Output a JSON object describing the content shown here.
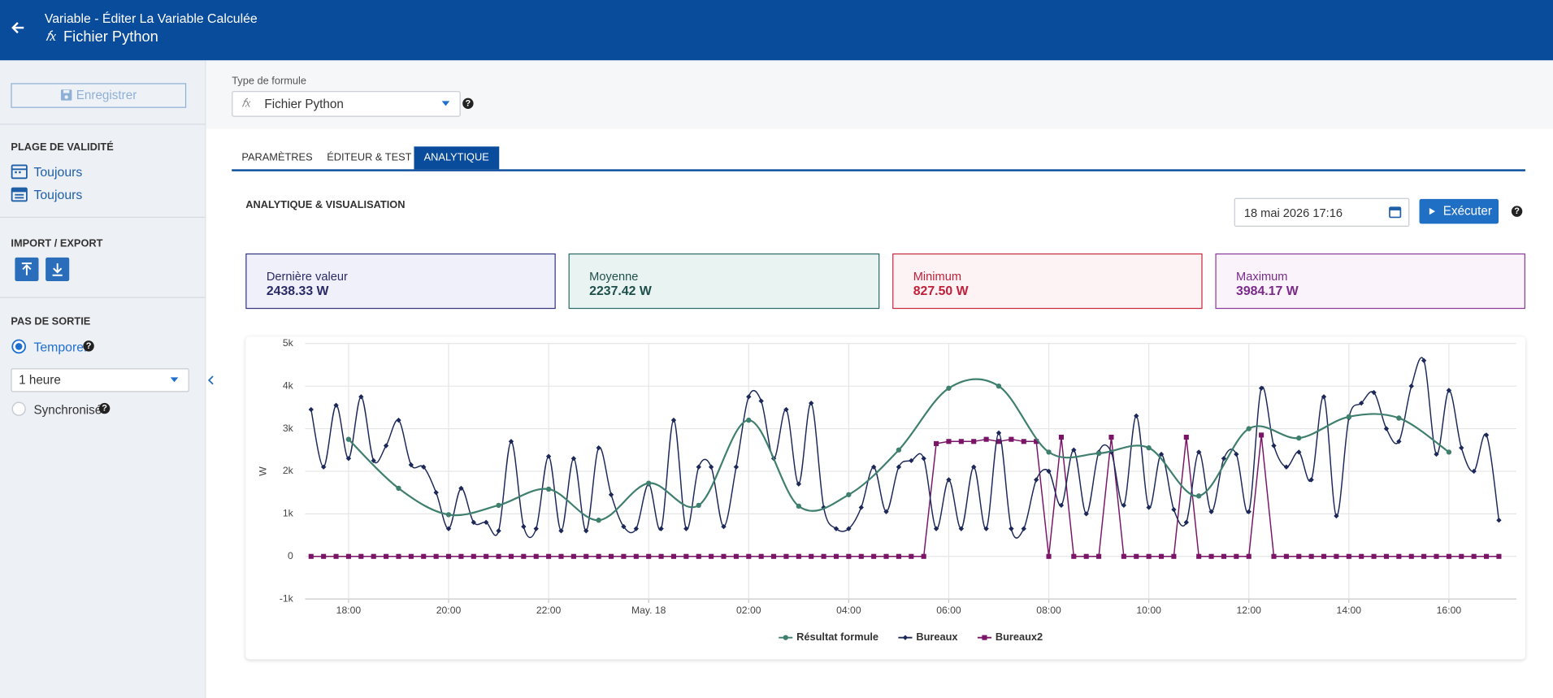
{
  "header": {
    "subtitle": "Variable - Éditer La Variable Calculée",
    "title": "Fichier Python"
  },
  "sidebar": {
    "save": "Enregistrer",
    "validity": {
      "heading": "PLAGE DE VALIDITÉ",
      "items": [
        "Toujours",
        "Toujours"
      ]
    },
    "import_export": {
      "heading": "IMPORT / EXPORT"
    },
    "output": {
      "heading": "PAS DE SORTIE",
      "temporal": "Temporel",
      "interval": "1 heure",
      "sync": "Synchronisé"
    }
  },
  "formula": {
    "label": "Type de formule",
    "value": "Fichier Python"
  },
  "tabs": [
    "PARAMÈTRES",
    "ÉDITEUR & TEST",
    "ANALYTIQUE"
  ],
  "analytics": {
    "heading": "ANALYTIQUE & VISUALISATION",
    "date": "18 mai 2026 17:16",
    "run": "Exécuter",
    "stats": [
      {
        "label": "Dernière valeur",
        "value": "2438.33 W"
      },
      {
        "label": "Moyenne",
        "value": "2237.42 W"
      },
      {
        "label": "Minimum",
        "value": "827.50 W"
      },
      {
        "label": "Maximum",
        "value": "3984.17 W"
      }
    ]
  },
  "chart_data": {
    "type": "line",
    "y_label": "W",
    "grid": true,
    "legend": "bottom",
    "xlim": [
      17.13,
      41.35
    ],
    "xticks": [
      {
        "value": 18,
        "label": "18:00"
      },
      {
        "value": 20,
        "label": "20:00"
      },
      {
        "value": 22,
        "label": "22:00"
      },
      {
        "value": 24,
        "label": "May. 18"
      },
      {
        "value": 26,
        "label": "02:00"
      },
      {
        "value": 28,
        "label": "04:00"
      },
      {
        "value": 30,
        "label": "06:00"
      },
      {
        "value": 32,
        "label": "08:00"
      },
      {
        "value": 34,
        "label": "10:00"
      },
      {
        "value": 36,
        "label": "12:00"
      },
      {
        "value": 38,
        "label": "14:00"
      },
      {
        "value": 40,
        "label": "16:00"
      }
    ],
    "ylim": [
      -1000,
      5000
    ],
    "yticks": [
      {
        "value": -1000,
        "label": "-1k"
      },
      0,
      {
        "value": 1000,
        "label": "1k"
      },
      {
        "value": 2000,
        "label": "2k"
      },
      {
        "value": 3000,
        "label": "3k"
      },
      {
        "value": 4000,
        "label": "4k"
      },
      {
        "value": 5000,
        "label": "5k"
      }
    ],
    "series": [
      {
        "name": "Résultat formule",
        "color": "#3f7f6e",
        "marker": "circle",
        "smooth": true,
        "x": [
          18,
          19,
          20,
          21,
          22,
          23,
          24,
          25,
          26,
          27,
          28,
          29,
          30,
          31,
          32,
          33,
          34,
          35,
          36,
          37,
          38,
          39,
          40
        ],
        "values": [
          2750,
          1600,
          980,
          1200,
          1580,
          850,
          1720,
          1200,
          3200,
          1180,
          1450,
          2500,
          3950,
          4000,
          2450,
          2420,
          2550,
          1420,
          3000,
          2780,
          3280,
          3250,
          2450
        ]
      },
      {
        "name": "Bureaux",
        "color": "#1b2858",
        "marker": "diamond",
        "smooth": true,
        "x": [
          17.25,
          17.5,
          17.75,
          18,
          18.25,
          18.5,
          18.75,
          19,
          19.25,
          19.5,
          19.75,
          20,
          20.25,
          20.5,
          20.75,
          21,
          21.25,
          21.5,
          21.75,
          22,
          22.25,
          22.5,
          22.75,
          23,
          23.25,
          23.5,
          23.75,
          24,
          24.25,
          24.5,
          24.75,
          25,
          25.25,
          25.5,
          25.75,
          26,
          26.25,
          26.5,
          26.75,
          27,
          27.25,
          27.5,
          27.75,
          28,
          28.25,
          28.5,
          28.75,
          29,
          29.25,
          29.5,
          29.75,
          30,
          30.25,
          30.5,
          30.75,
          31,
          31.25,
          31.5,
          31.75,
          32,
          32.25,
          32.5,
          32.75,
          33,
          33.25,
          33.5,
          33.75,
          34,
          34.25,
          34.5,
          34.75,
          35,
          35.25,
          35.5,
          35.75,
          36,
          36.25,
          36.5,
          36.75,
          37,
          37.25,
          37.5,
          37.75,
          38,
          38.25,
          38.5,
          38.75,
          39,
          39.25,
          39.5,
          39.75,
          40,
          40.25,
          40.5,
          40.75,
          41
        ],
        "values": [
          3450,
          2100,
          3550,
          2300,
          3750,
          2250,
          2600,
          3200,
          2150,
          2100,
          1500,
          650,
          1600,
          800,
          800,
          600,
          2700,
          700,
          650,
          2350,
          600,
          2300,
          600,
          2550,
          1450,
          700,
          650,
          1700,
          650,
          3200,
          650,
          2100,
          2100,
          700,
          2100,
          3750,
          3650,
          2300,
          3450,
          1700,
          3600,
          1150,
          650,
          650,
          1150,
          2100,
          1050,
          2100,
          2250,
          2300,
          650,
          1800,
          650,
          2100,
          650,
          2900,
          650,
          650,
          1800,
          2000,
          1200,
          2500,
          1000,
          2450,
          2450,
          1200,
          3300,
          1150,
          2400,
          1100,
          800,
          2450,
          1050,
          2300,
          2400,
          1050,
          3950,
          2600,
          2100,
          2450,
          1800,
          3750,
          950,
          3250,
          3600,
          3850,
          3000,
          2700,
          4000,
          4600,
          2400,
          3900,
          2550,
          2000,
          2850,
          850
        ]
      },
      {
        "name": "Bureaux2",
        "color": "#7a1466",
        "marker": "square",
        "smooth": false,
        "x": [
          17.25,
          17.5,
          17.75,
          18,
          18.25,
          18.5,
          18.75,
          19,
          19.25,
          19.5,
          19.75,
          20,
          20.25,
          20.5,
          20.75,
          21,
          21.25,
          21.5,
          21.75,
          22,
          22.25,
          22.5,
          22.75,
          23,
          23.25,
          23.5,
          23.75,
          24,
          24.25,
          24.5,
          24.75,
          25,
          25.25,
          25.5,
          25.75,
          26,
          26.25,
          26.5,
          26.75,
          27,
          27.25,
          27.5,
          27.75,
          28,
          28.25,
          28.5,
          28.75,
          29,
          29.25,
          29.5,
          29.75,
          30,
          30.25,
          30.5,
          30.75,
          31,
          31.25,
          31.5,
          31.75,
          32,
          32.25,
          32.5,
          32.75,
          33,
          33.25,
          33.5,
          33.75,
          34,
          34.25,
          34.5,
          34.75,
          35,
          35.25,
          35.5,
          35.75,
          36,
          36.25,
          36.5,
          36.75,
          37,
          37.25,
          37.5,
          37.75,
          38,
          38.25,
          38.5,
          38.75,
          39,
          39.25,
          39.5,
          39.75,
          40,
          40.25,
          40.5,
          40.75,
          41
        ],
        "values": [
          0,
          0,
          0,
          0,
          0,
          0,
          0,
          0,
          0,
          0,
          0,
          0,
          0,
          0,
          0,
          0,
          0,
          0,
          0,
          0,
          0,
          0,
          0,
          0,
          0,
          0,
          0,
          0,
          0,
          0,
          0,
          0,
          0,
          0,
          0,
          0,
          0,
          0,
          0,
          0,
          0,
          0,
          0,
          0,
          0,
          0,
          0,
          0,
          0,
          0,
          2650,
          2700,
          2700,
          2700,
          2750,
          2700,
          2750,
          2700,
          2700,
          0,
          2800,
          0,
          0,
          0,
          2800,
          0,
          0,
          0,
          0,
          0,
          2800,
          0,
          0,
          0,
          0,
          0,
          2850,
          0,
          0,
          0,
          0,
          0,
          0,
          0,
          0,
          0,
          0,
          0,
          0,
          0,
          0,
          0,
          0,
          0,
          0,
          0
        ]
      }
    ]
  }
}
